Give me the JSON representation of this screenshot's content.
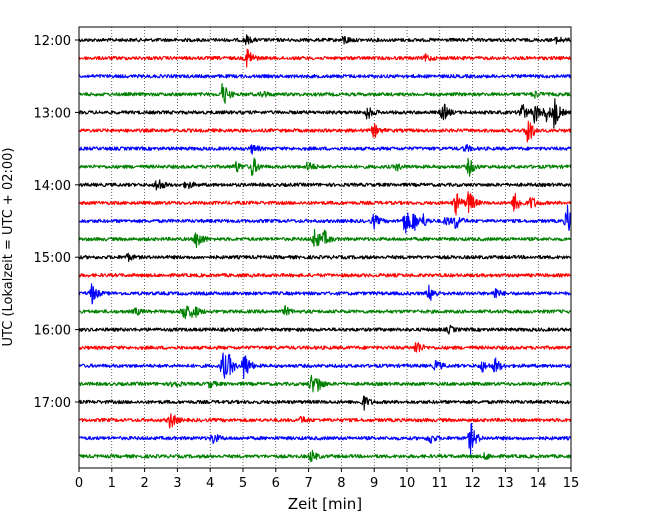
{
  "chart_data": {
    "type": "line",
    "title": "",
    "xlabel": "Zeit  [min]",
    "ylabel": "UTC (Lokalzeit = UTC + 02:00)",
    "xlim": [
      0,
      15
    ],
    "xticks": [
      "0",
      "1",
      "2",
      "3",
      "4",
      "5",
      "6",
      "7",
      "8",
      "9",
      "10",
      "11",
      "12",
      "13",
      "14",
      "15"
    ],
    "yticks": [
      "12:00",
      "13:00",
      "14:00",
      "15:00",
      "16:00",
      "17:00"
    ],
    "grid": "vertical dotted",
    "trace_colors": [
      "#000000",
      "#ff0000",
      "#0000ff",
      "#008000"
    ],
    "traces": [
      {
        "start": "12:00",
        "events": [
          [
            5.1,
            0.4
          ],
          [
            8.1,
            0.4
          ],
          [
            14.6,
            0.3
          ]
        ]
      },
      {
        "start": "12:15",
        "events": [
          [
            5.15,
            1.0
          ],
          [
            10.6,
            0.3
          ]
        ]
      },
      {
        "start": "12:30",
        "events": []
      },
      {
        "start": "12:45",
        "events": [
          [
            4.4,
            1.2
          ],
          [
            5.6,
            0.3
          ],
          [
            13.9,
            0.3
          ]
        ]
      },
      {
        "start": "13:00",
        "events": [
          [
            8.8,
            0.6
          ],
          [
            11.1,
            0.9
          ],
          [
            13.5,
            0.9
          ],
          [
            13.9,
            1.0
          ],
          [
            14.25,
            0.7
          ],
          [
            14.5,
            1.4
          ]
        ]
      },
      {
        "start": "13:15",
        "events": [
          [
            9.0,
            0.6
          ],
          [
            13.7,
            1.4
          ]
        ]
      },
      {
        "start": "13:30",
        "events": [
          [
            5.3,
            0.4
          ],
          [
            11.8,
            0.3
          ]
        ]
      },
      {
        "start": "13:45",
        "events": [
          [
            4.8,
            0.5
          ],
          [
            5.3,
            0.9
          ],
          [
            7.0,
            0.5
          ],
          [
            9.7,
            0.3
          ],
          [
            11.9,
            0.8
          ]
        ]
      },
      {
        "start": "14:00",
        "events": [
          [
            2.4,
            0.7
          ],
          [
            3.3,
            0.4
          ]
        ]
      },
      {
        "start": "14:15",
        "events": [
          [
            11.5,
            1.0
          ],
          [
            11.9,
            1.2
          ],
          [
            13.3,
            1.0
          ],
          [
            13.8,
            0.6
          ]
        ]
      },
      {
        "start": "14:30",
        "events": [
          [
            9.0,
            0.6
          ],
          [
            9.95,
            1.2
          ],
          [
            10.2,
            0.9
          ],
          [
            10.5,
            0.5
          ],
          [
            11.2,
            0.4
          ],
          [
            11.5,
            0.7
          ],
          [
            14.9,
            1.4
          ]
        ]
      },
      {
        "start": "14:45",
        "events": [
          [
            3.6,
            1.0
          ],
          [
            7.2,
            1.1
          ],
          [
            7.5,
            0.6
          ]
        ]
      },
      {
        "start": "15:00",
        "events": [
          [
            1.5,
            0.3
          ]
        ]
      },
      {
        "start": "15:15",
        "events": []
      },
      {
        "start": "15:30",
        "events": [
          [
            0.4,
            0.9
          ],
          [
            10.7,
            0.8
          ],
          [
            12.7,
            0.5
          ]
        ]
      },
      {
        "start": "15:45",
        "events": [
          [
            1.75,
            0.3
          ],
          [
            3.2,
            1.0
          ],
          [
            3.5,
            0.7
          ],
          [
            6.3,
            0.4
          ]
        ]
      },
      {
        "start": "16:00",
        "events": [
          [
            11.3,
            0.3
          ]
        ]
      },
      {
        "start": "16:15",
        "events": [
          [
            10.3,
            0.7
          ]
        ]
      },
      {
        "start": "16:30",
        "events": [
          [
            4.4,
            1.4
          ],
          [
            4.6,
            0.7
          ],
          [
            5.05,
            1.4
          ],
          [
            10.9,
            0.5
          ],
          [
            12.3,
            0.5
          ],
          [
            12.7,
            0.7
          ]
        ]
      },
      {
        "start": "16:45",
        "events": [
          [
            2.9,
            0.4
          ],
          [
            4.0,
            0.3
          ],
          [
            7.1,
            0.8
          ],
          [
            7.3,
            0.6
          ]
        ]
      },
      {
        "start": "17:00",
        "events": [
          [
            8.7,
            0.6
          ]
        ]
      },
      {
        "start": "17:15",
        "events": [
          [
            2.8,
            0.8
          ],
          [
            6.8,
            0.3
          ]
        ]
      },
      {
        "start": "17:30",
        "events": [
          [
            4.1,
            0.5
          ],
          [
            10.7,
            0.5
          ],
          [
            11.95,
            1.4
          ]
        ]
      },
      {
        "start": "17:45",
        "events": [
          [
            7.1,
            0.5
          ],
          [
            12.4,
            0.3
          ]
        ]
      }
    ]
  }
}
